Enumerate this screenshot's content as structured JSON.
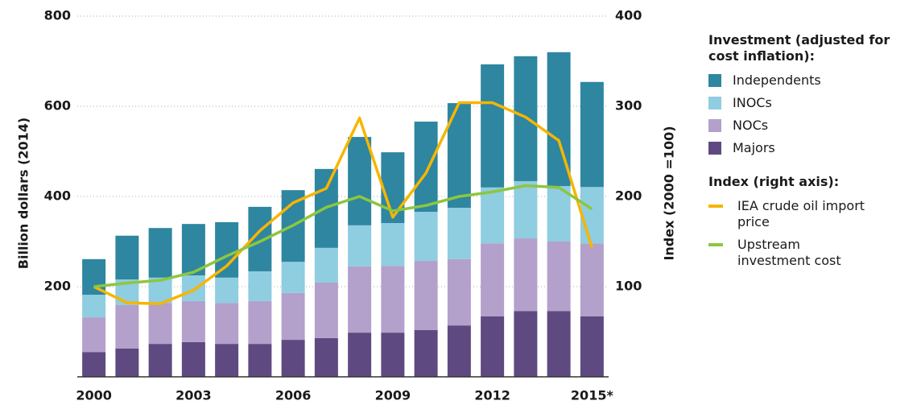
{
  "chart_data": {
    "type": "bar",
    "ylabel": "Billion dollars (2014)",
    "y2label": "Index (2000 =100)",
    "categories": [
      "2000",
      null,
      null,
      "2003",
      null,
      null,
      "2006",
      null,
      null,
      "2009",
      null,
      null,
      "2012",
      null,
      null,
      "2015*"
    ],
    "legend_titles": [
      "Investment (adjusted for cost inflation):",
      "Index (right axis):"
    ],
    "series": [
      {
        "name": "Independents",
        "color": "#2e86a0",
        "values": [
          79,
          97,
          110,
          114,
          123,
          143,
          159,
          175,
          196,
          157,
          200,
          232,
          273,
          277,
          297,
          233
        ]
      },
      {
        "name": "INOCs",
        "color": "#8fcde0",
        "values": [
          50,
          57,
          56,
          57,
          56,
          66,
          69,
          77,
          91,
          95,
          109,
          114,
          124,
          127,
          123,
          125
        ]
      },
      {
        "name": "NOCs",
        "color": "#b3a0cb",
        "values": [
          77,
          96,
          91,
          91,
          91,
          95,
          104,
          123,
          147,
          148,
          153,
          147,
          162,
          161,
          154,
          162
        ]
      },
      {
        "name": "Majors",
        "color": "#5e4a80",
        "values": [
          55,
          63,
          73,
          77,
          73,
          73,
          82,
          86,
          98,
          98,
          104,
          114,
          134,
          146,
          146,
          134
        ]
      },
      {
        "name": "IEA crude oil import price",
        "color": "#f7b500",
        "axis": "y2",
        "values": [
          100,
          82,
          81,
          96,
          123,
          162,
          193,
          209,
          287,
          177,
          226,
          304,
          304,
          288,
          262,
          143
        ]
      },
      {
        "name": "Upstream investment cost",
        "color": "#8dc63f",
        "axis": "y2",
        "values": [
          100,
          104,
          107,
          116,
          134,
          150,
          168,
          188,
          200,
          184,
          190,
          200,
          205,
          212,
          210,
          186
        ]
      }
    ],
    "ylim": [
      0,
      800
    ],
    "yticks": [
      200,
      400,
      600,
      800
    ],
    "y2lim": [
      0,
      400
    ],
    "y2ticks": [
      100,
      200,
      300,
      400
    ],
    "grid": true
  }
}
